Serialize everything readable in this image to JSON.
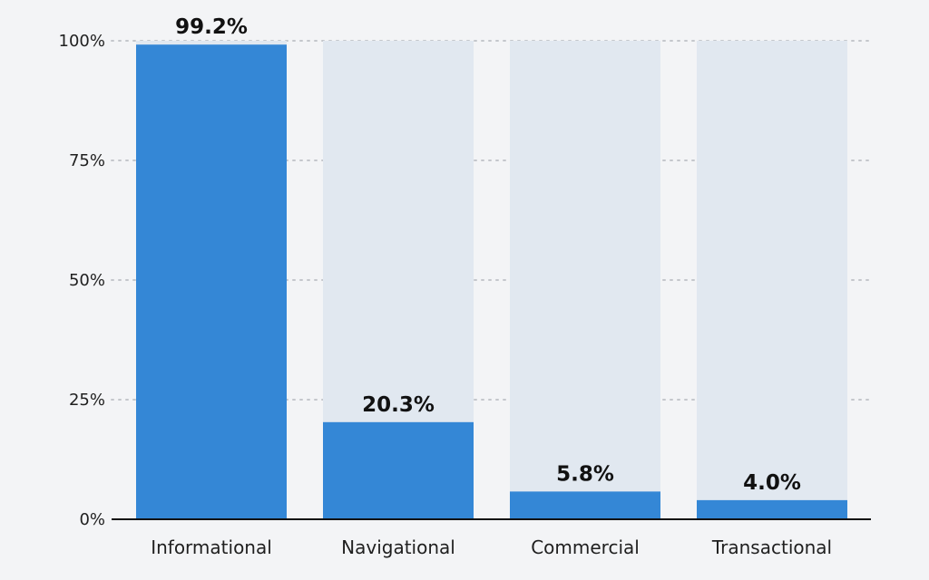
{
  "chart_data": {
    "type": "bar",
    "categories": [
      "Informational",
      "Navigational",
      "Commercial",
      "Transactional"
    ],
    "values": [
      99.2,
      20.3,
      5.8,
      4.0
    ],
    "value_labels": [
      "99.2%",
      "20.3%",
      "5.8%",
      "4.0%"
    ],
    "ylim": [
      0,
      100
    ],
    "yticks": [
      0,
      25,
      50,
      75,
      100
    ],
    "ytick_labels": [
      "0%",
      "25%",
      "50%",
      "75%",
      "100%"
    ],
    "grid": true,
    "background_bars": true,
    "colors": {
      "bar": "#3487d6",
      "bar_background": "#e1e8f0",
      "gridline": "#c4c7cc",
      "axis": "#111111",
      "page_background": "#f3f4f6"
    }
  }
}
